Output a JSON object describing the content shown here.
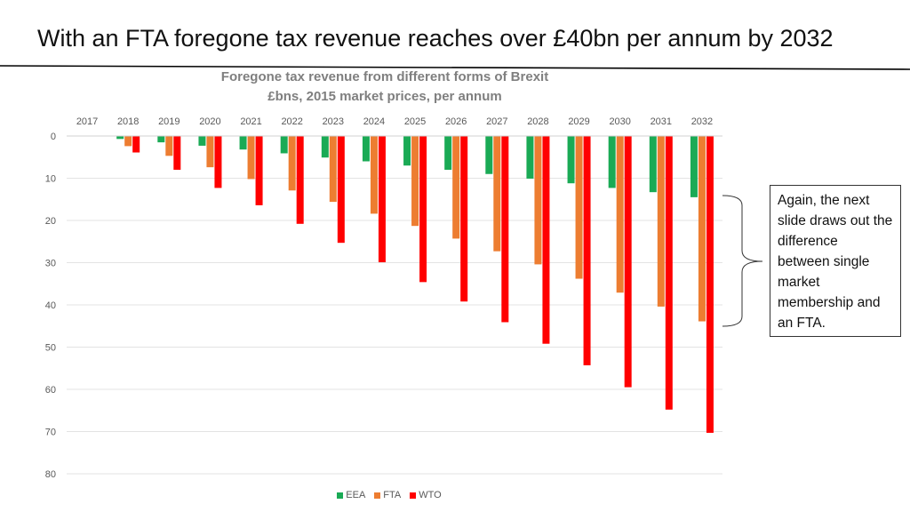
{
  "slide": {
    "title": "With an FTA foregone tax revenue reaches over £40bn per annum by 2032"
  },
  "callout": {
    "text": "Again, the next slide draws out the difference between single market membership and an FTA."
  },
  "colors": {
    "EEA": "#1aaa55",
    "FTA": "#ed7d31",
    "WTO": "#ff0000",
    "axis_text": "#595959",
    "title_text": "#7f7f7f"
  },
  "chart_data": {
    "type": "bar",
    "title_line1": "Foregone tax revenue from different forms of Brexit",
    "title_line2": "£bns, 2015 market prices, per annum",
    "categories": [
      "2017",
      "2018",
      "2019",
      "2020",
      "2021",
      "2022",
      "2023",
      "2024",
      "2025",
      "2026",
      "2027",
      "2028",
      "2029",
      "2030",
      "2031",
      "2032"
    ],
    "series": [
      {
        "name": "EEA",
        "values": [
          0,
          0.7,
          1.5,
          2.3,
          3.2,
          4.1,
          5.1,
          6.0,
          7.0,
          8.0,
          9.0,
          10.1,
          11.2,
          12.3,
          13.3,
          14.5
        ]
      },
      {
        "name": "FTA",
        "values": [
          0,
          2.4,
          4.7,
          7.4,
          10.2,
          12.9,
          15.6,
          18.4,
          21.3,
          24.3,
          27.3,
          30.4,
          33.8,
          37.1,
          40.4,
          43.9
        ]
      },
      {
        "name": "WTO",
        "values": [
          0,
          3.9,
          8.0,
          12.3,
          16.4,
          20.8,
          25.3,
          29.9,
          34.6,
          39.2,
          44.1,
          49.2,
          54.3,
          59.5,
          64.8,
          70.3
        ]
      }
    ],
    "yticks": [
      0,
      10,
      20,
      30,
      40,
      50,
      60,
      70,
      80
    ],
    "ylim": [
      0,
      80
    ],
    "y_axis_inverted": true,
    "x_axis_position": "top",
    "legend_position": "bottom",
    "xlabel": "",
    "ylabel": "",
    "grid": true
  }
}
